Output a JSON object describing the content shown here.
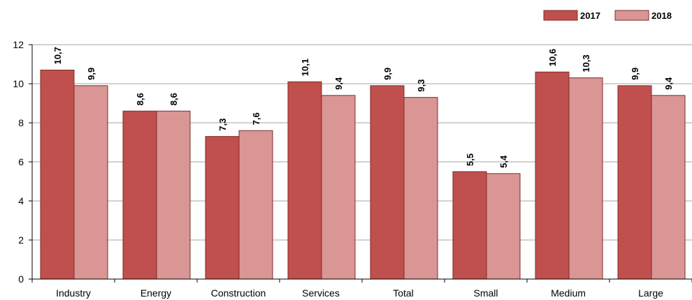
{
  "chart_data": {
    "type": "bar",
    "categories": [
      "Industry",
      "Energy",
      "Construction",
      "Services",
      "Total",
      "Small",
      "Medium",
      "Large"
    ],
    "series": [
      {
        "name": "2017",
        "color": "#C0504D",
        "values": [
          10.7,
          8.6,
          7.3,
          10.1,
          9.9,
          5.5,
          10.6,
          9.9
        ],
        "labels": [
          "10,7",
          "8,6",
          "7,3",
          "10,1",
          "9,9",
          "5,5",
          "10,6",
          "9,9"
        ]
      },
      {
        "name": "2018",
        "color": "#D99694",
        "values": [
          9.9,
          8.6,
          7.6,
          9.4,
          9.3,
          5.4,
          10.3,
          9.4
        ],
        "labels": [
          "9,9",
          "8,6",
          "7,6",
          "9,4",
          "9,3",
          "5,4",
          "10,3",
          "9,4"
        ]
      }
    ],
    "yticks": [
      "0",
      "2",
      "4",
      "6",
      "8",
      "10",
      "12"
    ],
    "ylim": [
      0,
      12
    ],
    "grid": true,
    "legend": "top-right",
    "title": "",
    "xlabel": "",
    "ylabel": ""
  }
}
